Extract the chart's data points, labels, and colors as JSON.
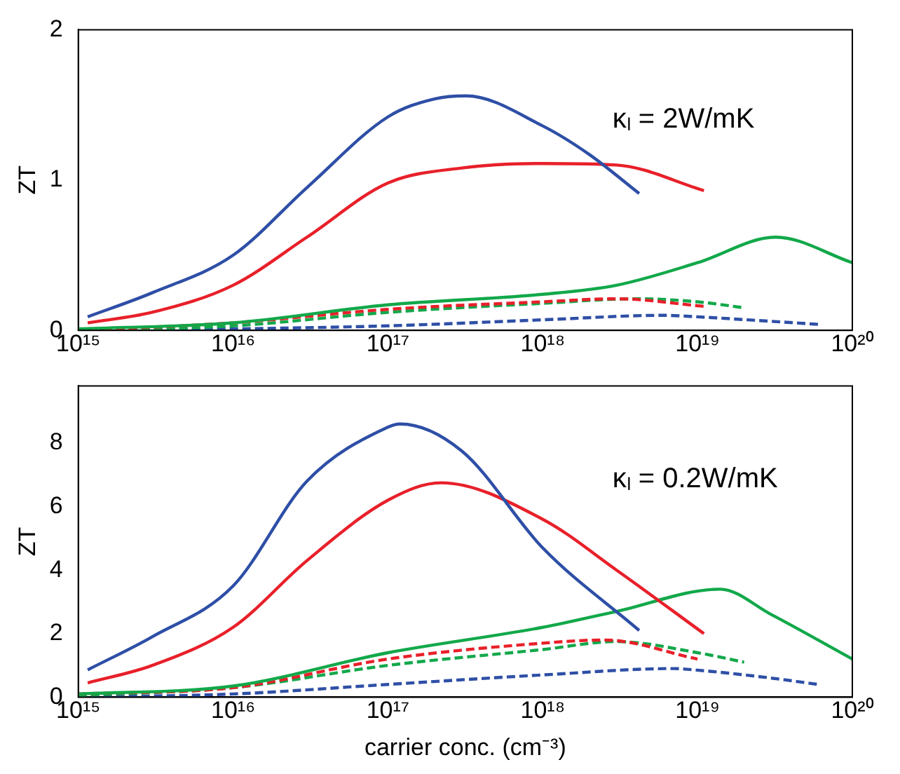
{
  "chart_data": [
    {
      "type": "line",
      "ylabel": "ZT",
      "annotations": [
        "κₗ = 2W/mK"
      ],
      "log": "x",
      "xlim": [
        1000000000000000.0,
        1e+20
      ],
      "xticks": [
        {
          "value": 1000000000000000.0,
          "label": "10¹⁵"
        },
        {
          "value": 1e+16,
          "label": "10¹⁶"
        },
        {
          "value": 1e+17,
          "label": "10¹⁷"
        },
        {
          "value": 1e+18,
          "label": "10¹⁸"
        },
        {
          "value": 1e+19,
          "label": "10¹⁹"
        },
        {
          "value": 1e+20,
          "label": "10²⁰"
        }
      ],
      "ylim": [
        0,
        2
      ],
      "yticks": [
        0,
        1,
        2
      ],
      "grid": false,
      "legend": false,
      "marker": "none",
      "series": [
        {
          "color": "#2e4fa6",
          "line_style": "solid",
          "x": [
            1150000000000000.0,
            3000000000000000.0,
            1e+16,
            3e+16,
            1e+17,
            2e+17,
            3.2e+17,
            1e+18,
            2e+18,
            4.2e+18
          ],
          "values": [
            0.09,
            0.25,
            0.5,
            0.95,
            1.42,
            1.54,
            1.56,
            1.36,
            1.17,
            0.91
          ]
        },
        {
          "color": "#e8202a",
          "line_style": "solid",
          "x": [
            1150000000000000.0,
            3000000000000000.0,
            1e+16,
            3e+16,
            1e+17,
            3e+17,
            1e+18,
            3e+18,
            1.1e+19
          ],
          "values": [
            0.05,
            0.12,
            0.3,
            0.62,
            0.98,
            1.08,
            1.11,
            1.1,
            0.93
          ]
        },
        {
          "color": "#12a84a",
          "line_style": "solid",
          "x": [
            1000000000000000.0,
            1e+16,
            1e+17,
            1e+18,
            3e+18,
            1e+19,
            3.2e+19,
            1e+20
          ],
          "values": [
            0.01,
            0.05,
            0.17,
            0.24,
            0.3,
            0.45,
            0.62,
            0.45
          ]
        },
        {
          "color": "#e8202a",
          "line_style": "dashed",
          "x": [
            1000000000000000.0,
            1e+16,
            1e+17,
            1e+18,
            3e+18,
            1.1e+19
          ],
          "values": [
            0.0,
            0.05,
            0.14,
            0.19,
            0.21,
            0.16
          ]
        },
        {
          "color": "#12a84a",
          "line_style": "dashed",
          "x": [
            1000000000000000.0,
            1e+16,
            1e+17,
            1e+18,
            4e+18,
            1e+19,
            2e+19
          ],
          "values": [
            0.0,
            0.03,
            0.12,
            0.18,
            0.21,
            0.19,
            0.15
          ]
        },
        {
          "color": "#2e4fa6",
          "line_style": "dashed",
          "x": [
            1000000000000000.0,
            1e+16,
            1e+17,
            1e+18,
            6e+18,
            1e+19,
            3e+19,
            6e+19
          ],
          "values": [
            0.0,
            0.01,
            0.03,
            0.07,
            0.1,
            0.09,
            0.06,
            0.04
          ]
        }
      ]
    },
    {
      "type": "line",
      "ylabel": "ZT",
      "xlabel": "carrier conc. (cm⁻³)",
      "annotations": [
        "κₗ = 0.2W/mK"
      ],
      "log": "x",
      "xlim": [
        1000000000000000.0,
        1e+20
      ],
      "xticks": [
        {
          "value": 1000000000000000.0,
          "label": "10¹⁵"
        },
        {
          "value": 1e+16,
          "label": "10¹⁶"
        },
        {
          "value": 1e+17,
          "label": "10¹⁷"
        },
        {
          "value": 1e+18,
          "label": "10¹⁸"
        },
        {
          "value": 1e+19,
          "label": "10¹⁹"
        },
        {
          "value": 1e+20,
          "label": "10²⁰"
        }
      ],
      "ylim": [
        0,
        9.8
      ],
      "yticks": [
        0,
        2,
        4,
        6,
        8
      ],
      "grid": false,
      "legend": false,
      "marker": "none",
      "series": [
        {
          "color": "#2e4fa6",
          "line_style": "solid",
          "x": [
            1150000000000000.0,
            3000000000000000.0,
            1e+16,
            3e+16,
            1e+17,
            1.2e+17,
            3e+17,
            1e+18,
            4.2e+18
          ],
          "values": [
            0.86,
            1.9,
            3.5,
            6.8,
            8.5,
            8.6,
            7.75,
            4.7,
            2.1
          ]
        },
        {
          "color": "#e8202a",
          "line_style": "solid",
          "x": [
            1150000000000000.0,
            3000000000000000.0,
            1e+16,
            3e+16,
            1e+17,
            2.2e+17,
            1e+18,
            3e+18,
            1.1e+19
          ],
          "values": [
            0.45,
            1.0,
            2.2,
            4.3,
            6.2,
            6.75,
            5.6,
            4.0,
            2.0
          ]
        },
        {
          "color": "#12a84a",
          "line_style": "solid",
          "x": [
            1000000000000000.0,
            1e+16,
            1e+17,
            1e+18,
            3e+18,
            1.4e+19,
            3e+19,
            1e+20
          ],
          "values": [
            0.1,
            0.35,
            1.4,
            2.2,
            2.7,
            3.4,
            2.6,
            1.2
          ]
        },
        {
          "color": "#e8202a",
          "line_style": "dashed",
          "x": [
            1000000000000000.0,
            1e+16,
            1e+17,
            1e+18,
            2.5e+18,
            1e+19
          ],
          "values": [
            0.1,
            0.3,
            1.2,
            1.7,
            1.8,
            1.2
          ]
        },
        {
          "color": "#12a84a",
          "line_style": "dashed",
          "x": [
            1000000000000000.0,
            1e+16,
            1e+17,
            1e+18,
            3e+18,
            1e+19,
            2e+19
          ],
          "values": [
            0.05,
            0.3,
            1.0,
            1.5,
            1.75,
            1.4,
            1.1
          ]
        },
        {
          "color": "#2e4fa6",
          "line_style": "dashed",
          "x": [
            1000000000000000.0,
            1e+16,
            1e+17,
            1e+18,
            7e+18,
            1e+19,
            3e+19,
            6e+19
          ],
          "values": [
            0.0,
            0.1,
            0.4,
            0.7,
            0.9,
            0.85,
            0.6,
            0.4
          ]
        }
      ]
    }
  ]
}
